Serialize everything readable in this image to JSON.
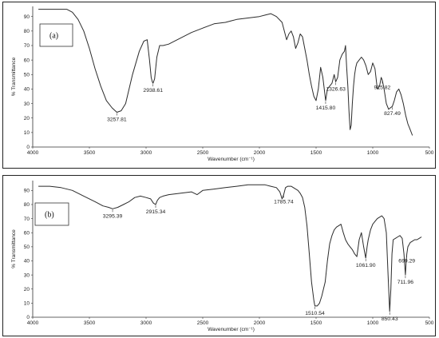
{
  "chart_data": [
    {
      "type": "line",
      "panel_label": "(a)",
      "xlabel": "Wavenumber (cm⁻¹)",
      "ylabel": "% Transmittance",
      "xlim": [
        4000,
        500
      ],
      "ylim": [
        0,
        97
      ],
      "x_ticks": [
        4000,
        3500,
        3000,
        2500,
        2000,
        1500,
        1000,
        500
      ],
      "y_ticks": [
        0,
        10,
        20,
        30,
        40,
        50,
        60,
        70,
        80,
        90
      ],
      "grid": false,
      "peak_labels": [
        {
          "text": "3257.81",
          "x": 3257.81,
          "y": 24
        },
        {
          "text": "2938.61",
          "x": 2938.61,
          "y": 44
        },
        {
          "text": "1415.80",
          "x": 1415.8,
          "y": 32
        },
        {
          "text": "1326.63",
          "x": 1326.63,
          "y": 45
        },
        {
          "text": "915.82",
          "x": 915.82,
          "y": 46
        },
        {
          "text": "827.49",
          "x": 827.49,
          "y": 28
        }
      ],
      "series": [
        {
          "x": [
            3950,
            3800,
            3700,
            3650,
            3600,
            3550,
            3500,
            3450,
            3400,
            3350,
            3300,
            3257.81,
            3220,
            3180,
            3120,
            3060,
            3020,
            2990,
            2970,
            2955,
            2945,
            2938.61,
            2925,
            2905,
            2880,
            2850,
            2800,
            2700,
            2600,
            2500,
            2400,
            2300,
            2250,
            2200,
            2100,
            2000,
            1950,
            1900,
            1850,
            1800,
            1780,
            1760,
            1740,
            1720,
            1700,
            1680,
            1660,
            1640,
            1620,
            1600,
            1580,
            1560,
            1540,
            1520,
            1500,
            1480,
            1460,
            1440,
            1415.8,
            1400,
            1380,
            1360,
            1340,
            1326.63,
            1310,
            1290,
            1270,
            1250,
            1240,
            1230,
            1220,
            1210,
            1200,
            1190,
            1180,
            1170,
            1160,
            1150,
            1140,
            1120,
            1100,
            1080,
            1060,
            1040,
            1020,
            1000,
            980,
            960,
            940,
            925,
            915.82,
            900,
            880,
            860,
            845,
            827.49,
            810,
            790,
            770,
            750,
            730,
            710,
            690,
            670,
            650
          ],
          "y": [
            95,
            95,
            95,
            93,
            88,
            80,
            68,
            54,
            42,
            32,
            27,
            24,
            25,
            30,
            50,
            66,
            73,
            74,
            60,
            48,
            45,
            44,
            47,
            62,
            70,
            70,
            71,
            75,
            79,
            82,
            85,
            86,
            87,
            88,
            89,
            90,
            91,
            92,
            90,
            86,
            80,
            74,
            78,
            80,
            76,
            68,
            72,
            78,
            76,
            68,
            60,
            50,
            42,
            35,
            32,
            40,
            55,
            48,
            32,
            40,
            42,
            44,
            50,
            45,
            48,
            60,
            64,
            66,
            70,
            55,
            42,
            25,
            12,
            15,
            30,
            42,
            50,
            55,
            58,
            60,
            62,
            60,
            56,
            50,
            52,
            58,
            54,
            40,
            42,
            48,
            46,
            40,
            30,
            26,
            27,
            28,
            32,
            38,
            40,
            36,
            30,
            22,
            16,
            12,
            8
          ]
        }
      ]
    },
    {
      "type": "line",
      "panel_label": "(b)",
      "xlabel": "Wavenumber (cm⁻¹)",
      "ylabel": "% Transmittance",
      "xlim": [
        4000,
        500
      ],
      "ylim": [
        0,
        97
      ],
      "x_ticks": [
        4000,
        3500,
        3000,
        2500,
        2000,
        1500,
        1000,
        500
      ],
      "y_ticks": [
        0,
        10,
        20,
        30,
        40,
        50,
        60,
        70,
        80,
        90
      ],
      "grid": false,
      "peak_labels": [
        {
          "text": "3295.39",
          "x": 3295.39,
          "y": 77
        },
        {
          "text": "2915.34",
          "x": 2915.34,
          "y": 80
        },
        {
          "text": "1785.74",
          "x": 1785.74,
          "y": 87
        },
        {
          "text": "1510.54",
          "x": 1510.54,
          "y": 8
        },
        {
          "text": "1061.90",
          "x": 1061.9,
          "y": 42
        },
        {
          "text": "850.43",
          "x": 850.43,
          "y": 4
        },
        {
          "text": "711.96",
          "x": 711.96,
          "y": 30
        },
        {
          "text": "699.29",
          "x": 699.29,
          "y": 45
        }
      ],
      "series": [
        {
          "x": [
            3950,
            3850,
            3750,
            3650,
            3550,
            3450,
            3380,
            3330,
            3295.39,
            3250,
            3200,
            3150,
            3100,
            3050,
            3000,
            2960,
            2935,
            2915.34,
            2900,
            2880,
            2850,
            2800,
            2700,
            2600,
            2550,
            2500,
            2400,
            2300,
            2200,
            2100,
            2000,
            1950,
            1900,
            1850,
            1820,
            1800,
            1785.74,
            1770,
            1750,
            1720,
            1700,
            1680,
            1660,
            1640,
            1620,
            1600,
            1580,
            1560,
            1540,
            1520,
            1510.54,
            1490,
            1470,
            1450,
            1420,
            1400,
            1380,
            1360,
            1340,
            1320,
            1300,
            1280,
            1260,
            1240,
            1220,
            1200,
            1180,
            1160,
            1140,
            1120,
            1100,
            1080,
            1061.9,
            1050,
            1040,
            1020,
            1000,
            980,
            960,
            940,
            920,
            900,
            880,
            865,
            850.43,
            840,
            830,
            820,
            800,
            780,
            760,
            740,
            725,
            711.96,
            705,
            699.29,
            690,
            670,
            650,
            630,
            610,
            590,
            570
          ],
          "y": [
            93,
            93,
            92,
            90,
            86,
            82,
            79,
            78,
            77,
            78,
            80,
            82,
            85,
            86,
            85,
            84,
            81,
            80,
            83,
            85,
            86,
            87,
            88,
            89,
            87,
            90,
            91,
            92,
            93,
            94,
            94,
            94,
            93,
            92,
            89,
            84,
            87,
            92,
            93,
            93,
            92,
            91,
            90,
            88,
            85,
            78,
            65,
            45,
            25,
            12,
            8,
            8,
            10,
            15,
            25,
            40,
            52,
            58,
            62,
            64,
            65,
            66,
            60,
            55,
            52,
            50,
            48,
            45,
            43,
            55,
            60,
            50,
            42,
            50,
            55,
            62,
            66,
            68,
            70,
            71,
            72,
            70,
            60,
            30,
            4,
            20,
            45,
            55,
            56,
            57,
            58,
            56,
            45,
            30,
            40,
            45,
            50,
            53,
            54,
            55,
            55,
            56,
            57
          ]
        }
      ]
    }
  ]
}
